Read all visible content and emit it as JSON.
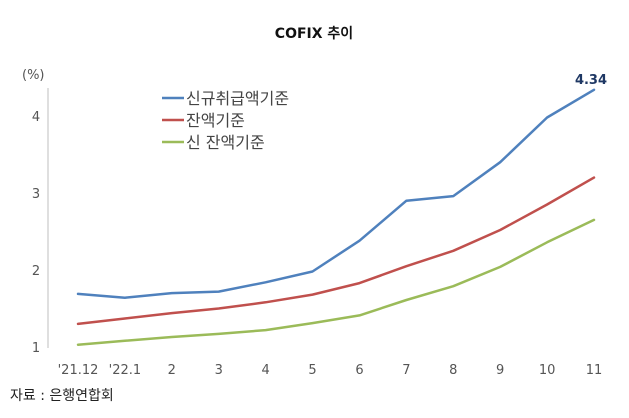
{
  "chart_data": {
    "type": "line",
    "title": "COFIX 추이",
    "unit": "(%)",
    "categories": [
      "'21.12",
      "'22.1",
      "2",
      "3",
      "4",
      "5",
      "6",
      "7",
      "8",
      "9",
      "10",
      "11"
    ],
    "ylim": [
      1,
      4.5
    ],
    "yticks": [
      "1",
      "2",
      "3",
      "4"
    ],
    "grid": false,
    "legend_position": "top-left",
    "series": [
      {
        "name": "신규취급액기준",
        "color": "#4f81bd",
        "values": [
          1.69,
          1.64,
          1.7,
          1.72,
          1.84,
          1.98,
          2.38,
          2.9,
          2.96,
          3.4,
          3.98,
          4.34
        ]
      },
      {
        "name": "잔액기준",
        "color": "#c0504d",
        "values": [
          1.3,
          1.37,
          1.44,
          1.5,
          1.58,
          1.68,
          1.83,
          2.05,
          2.25,
          2.52,
          2.85,
          3.2
        ]
      },
      {
        "name": "신 잔액기준",
        "color": "#9bbb59",
        "values": [
          1.03,
          1.08,
          1.13,
          1.17,
          1.22,
          1.31,
          1.41,
          1.61,
          1.79,
          2.04,
          2.36,
          2.65
        ]
      }
    ],
    "annotations": [
      {
        "series": 0,
        "index": 11,
        "text": "4.34"
      }
    ]
  },
  "source": "자료 : 은행연합회"
}
